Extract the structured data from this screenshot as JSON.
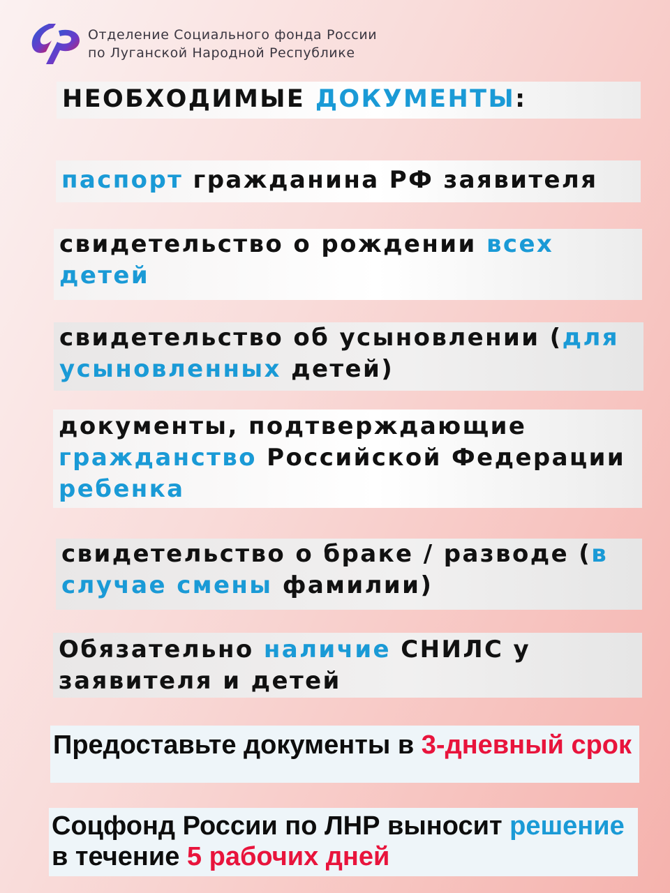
{
  "header": {
    "org_line1": "Отделение Социального фонда России",
    "org_line2": "по Луганской Народной Республике",
    "logo_icon": "sfr-logo"
  },
  "colors": {
    "accent_blue": "#1a9ad6",
    "accent_red": "#e8143c"
  },
  "title": {
    "part1": "НЕОБХОДИМЫЕ ",
    "part2": "ДОКУМЕНТЫ",
    "part3": ":"
  },
  "items": [
    {
      "s1": "паспорт",
      "s2": " гражданина РФ заявителя"
    },
    {
      "s1": "свидетельство о рождении ",
      "s2": "всех детей"
    },
    {
      "s1": "свидетельство об усыновлении (",
      "s2": "для усыновленных",
      "s3": " детей)"
    },
    {
      "s1": "документы, подтверждающие ",
      "s2": "гражданство",
      "s3": " Российской Федерации ",
      "s4": "ребенка"
    },
    {
      "s1": "свидетельство о браке / разводе (",
      "s2": "в случае смены",
      "s3": " фамилии)"
    },
    {
      "s1": "Обязательно ",
      "s2": "наличие",
      "s3": " СНИЛС у заявителя и детей"
    }
  ],
  "deadline": {
    "s1": "Предоставьте документы в ",
    "s2": "3-дневный срок"
  },
  "decision": {
    "s1": "Соцфонд России по ЛНР выносит ",
    "s2": "решение",
    "s3": " в течение ",
    "s4": "5 рабочих дней"
  }
}
